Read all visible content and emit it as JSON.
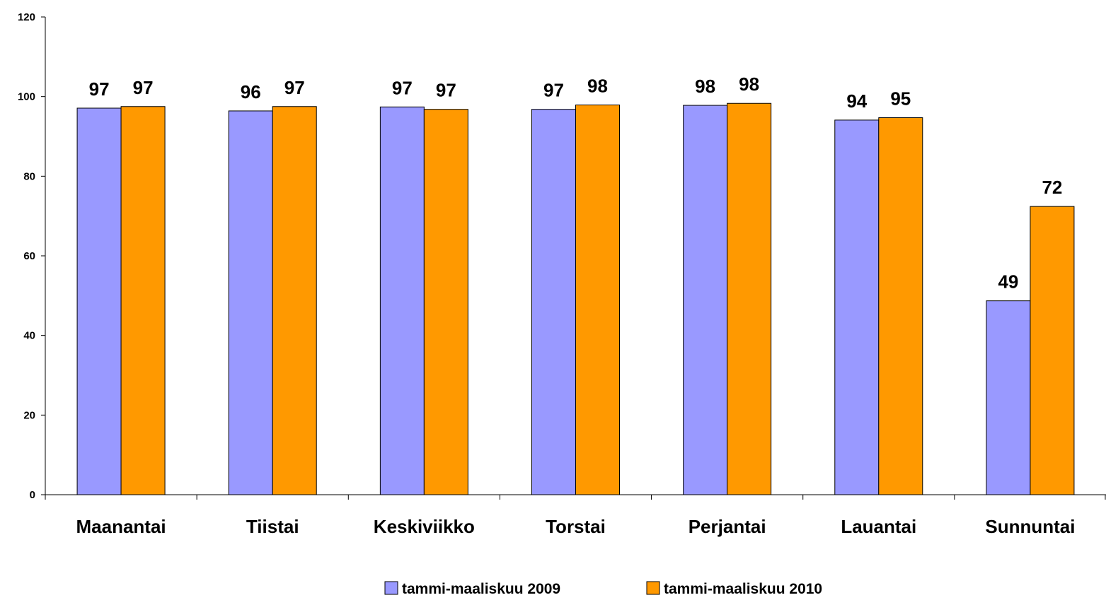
{
  "chart_data": {
    "type": "bar",
    "title": "",
    "xlabel": "",
    "ylabel": "",
    "ylim": [
      0,
      120
    ],
    "yticks": [
      0,
      20,
      40,
      60,
      80,
      100,
      120
    ],
    "grid": false,
    "legend_position": "bottom",
    "categories": [
      "Maanantai",
      "Tiistai",
      "Keskiviikko",
      "Torstai",
      "Perjantai",
      "Lauantai",
      "Sunnuntai"
    ],
    "series": [
      {
        "name": "tammi-maaliskuu 2009",
        "color": "#9999ff",
        "values": [
          97.1,
          96.4,
          97.4,
          96.8,
          97.8,
          94.1,
          48.7
        ],
        "labels": [
          "97",
          "96",
          "97",
          "97",
          "98",
          "94",
          "49"
        ]
      },
      {
        "name": "tammi-maaliskuu 2010",
        "color": "#ff9900",
        "values": [
          97.5,
          97.5,
          96.8,
          97.9,
          98.3,
          94.7,
          72.4
        ],
        "labels": [
          "97",
          "97",
          "97",
          "98",
          "98",
          "95",
          "72"
        ]
      }
    ]
  }
}
